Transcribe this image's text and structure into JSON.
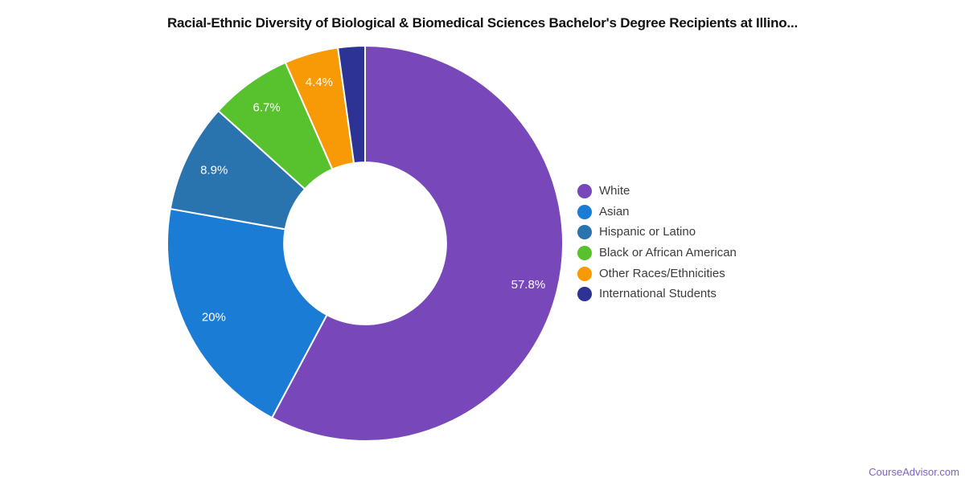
{
  "title": "Racial-Ethnic Diversity of Biological & Biomedical Sciences Bachelor's Degree Recipients at Illino...",
  "footer": {
    "brand": "CourseAdvisor.com"
  },
  "chart_data": {
    "type": "pie",
    "subtype": "donut",
    "title": "Racial-Ethnic Diversity of Biological & Biomedical Sciences Bachelor's Degree Recipients at Illino...",
    "direction": "clockwise",
    "start_angle_deg": 0,
    "inner_radius_ratio": 0.41,
    "legend_position": "right",
    "background": "#ffffff",
    "label_color": "#ffffff",
    "slices": [
      {
        "label": "White",
        "value": 57.8,
        "display": "57.8%",
        "color": "#7847ba"
      },
      {
        "label": "Asian",
        "value": 20.0,
        "display": "20%",
        "color": "#1a7cd5"
      },
      {
        "label": "Hispanic or Latino",
        "value": 8.9,
        "display": "8.9%",
        "color": "#2973af"
      },
      {
        "label": "Black or African American",
        "value": 6.7,
        "display": "6.7%",
        "color": "#58c22e"
      },
      {
        "label": "Other Races/Ethnicities",
        "value": 4.4,
        "display": "4.4%",
        "color": "#f89a06"
      },
      {
        "label": "International Students",
        "value": 2.2,
        "display": "",
        "color": "#2d3295"
      }
    ]
  }
}
